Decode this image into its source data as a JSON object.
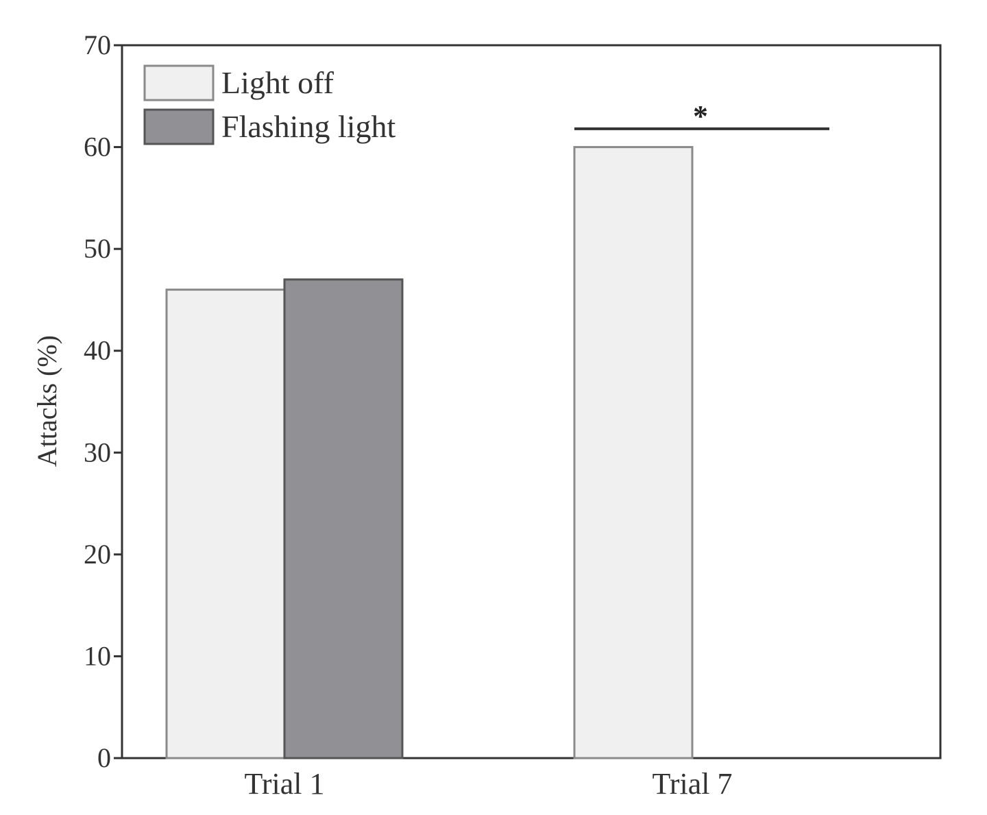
{
  "chart_data": {
    "type": "bar",
    "categories": [
      "Trial 1",
      "Trial 7"
    ],
    "series": [
      {
        "name": "Light off",
        "values": [
          46,
          60
        ],
        "color": "#f0f0f0"
      },
      {
        "name": "Flashing light",
        "values": [
          47,
          0
        ],
        "color": "#909095"
      }
    ],
    "xlabel": "",
    "ylabel": "Attacks (%)",
    "ylim": [
      0,
      70
    ],
    "yticks": [
      0,
      10,
      20,
      30,
      40,
      50,
      60,
      70
    ],
    "legend": "top-left",
    "grid": false,
    "annotations": [
      {
        "text": "*",
        "category": "Trial 7",
        "type": "significance-bracket",
        "y": 62
      }
    ]
  }
}
